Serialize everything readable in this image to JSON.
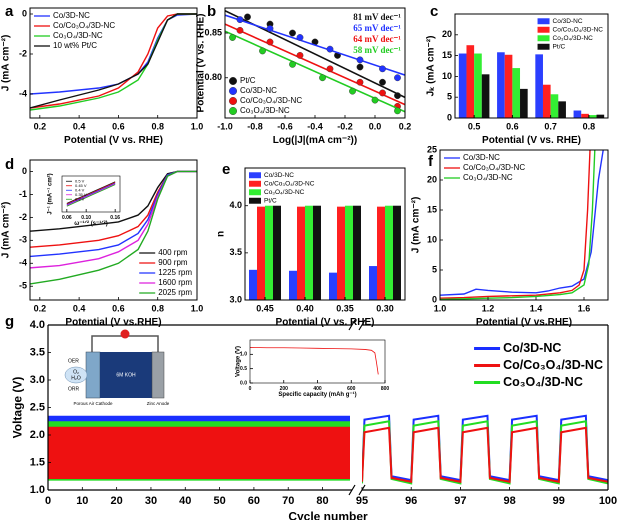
{
  "chart_data": [
    {
      "type": "line",
      "panel_label": "a",
      "x_label": "Potential (V vs. RHE)",
      "y_label": "J (mA cm⁻²)",
      "x": [
        0.15,
        0.3,
        0.5,
        0.6,
        0.7,
        0.75,
        0.8,
        0.85,
        0.9,
        1.0
      ],
      "xlim": [
        0.15,
        1.0
      ],
      "xticks": [
        0.2,
        0.4,
        0.6,
        0.8,
        {
          "value": 1,
          "label": "1.0"
        }
      ],
      "ylim": [
        -5.2,
        0.3
      ],
      "yticks": [
        -4,
        -2,
        0
      ],
      "legend": "upper left",
      "series": [
        {
          "name": "Co/3D-NC",
          "color": "#2233ff",
          "values": [
            -4.0,
            -3.9,
            -3.7,
            -3.5,
            -3.0,
            -2.4,
            -1.2,
            -0.3,
            -0.05,
            0
          ]
        },
        {
          "name": "Co/Co₃O₄/3D-NC",
          "color": "#ee1111",
          "values": [
            -4.7,
            -4.5,
            -4.1,
            -3.7,
            -2.9,
            -2.0,
            -0.7,
            -0.1,
            0,
            0
          ]
        },
        {
          "name": "Co₃O₄/3D-NC",
          "color": "#22cc22",
          "values": [
            -4.8,
            -4.6,
            -4.2,
            -3.9,
            -3.3,
            -2.5,
            -1.3,
            -0.3,
            0,
            0
          ]
        },
        {
          "name": "10 wt% Pt/C",
          "color": "#111111",
          "values": [
            -4.7,
            -4.3,
            -3.8,
            -3.5,
            -3.0,
            -2.5,
            -1.4,
            -0.3,
            0,
            0
          ]
        }
      ]
    },
    {
      "type": "scatter",
      "panel_label": "b",
      "x_label": "Log(|J|(mA cm⁻²))",
      "y_label": "Potential (V vs. RHE)",
      "xlim": [
        -1.0,
        0.2
      ],
      "xticks": [
        {
          "value": -1,
          "label": "-1.0"
        },
        -0.8,
        -0.6,
        -0.4,
        -0.2,
        {
          "value": 0,
          "label": "0.0"
        },
        0.2
      ],
      "ylim": [
        0.755,
        0.878
      ],
      "yticks": [
        {
          "value": 0.8,
          "label": "0.80"
        },
        0.85
      ],
      "legend": "lower left",
      "annotations": [
        {
          "text": "81 mV dec⁻¹",
          "color": "#111111"
        },
        {
          "text": "65 mV dec⁻¹",
          "color": "#2233ff"
        },
        {
          "text": "64 mV dec⁻¹",
          "color": "#ee1111"
        },
        {
          "text": "58 mV dec⁻¹",
          "color": "#22cc22"
        }
      ],
      "series": [
        {
          "name": "Pt/C",
          "color": "#111111",
          "x": [
            -0.85,
            -0.7,
            -0.55,
            -0.4,
            -0.25,
            -0.1,
            0.05,
            0.15
          ],
          "values": [
            0.868,
            0.86,
            0.85,
            0.84,
            0.825,
            0.812,
            0.795,
            0.78
          ],
          "fit_x": [
            -1.0,
            0.2
          ],
          "fit_values": [
            0.875,
            0.778
          ]
        },
        {
          "name": "Co/3D-NC",
          "color": "#2233ff",
          "x": [
            -0.9,
            -0.7,
            -0.5,
            -0.3,
            -0.1,
            0.05,
            0.15
          ],
          "values": [
            0.865,
            0.855,
            0.845,
            0.832,
            0.82,
            0.81,
            0.8
          ],
          "fit_x": [
            -1.0,
            0.2
          ],
          "fit_values": [
            0.87,
            0.803
          ]
        },
        {
          "name": "Co/Co₃O₄/3D-NC",
          "color": "#ee1111",
          "x": [
            -0.9,
            -0.7,
            -0.5,
            -0.3,
            -0.1,
            0.05,
            0.15
          ],
          "values": [
            0.853,
            0.84,
            0.825,
            0.81,
            0.795,
            0.783,
            0.768
          ],
          "fit_x": [
            -1.0,
            0.2
          ],
          "fit_values": [
            0.86,
            0.77
          ]
        },
        {
          "name": "Co₃O₄/3D-NC",
          "color": "#22cc22",
          "x": [
            -0.95,
            -0.75,
            -0.55,
            -0.35,
            -0.15,
            0.0,
            0.15
          ],
          "values": [
            0.845,
            0.83,
            0.815,
            0.8,
            0.785,
            0.775,
            0.763
          ],
          "fit_x": [
            -1.0,
            0.2
          ],
          "fit_values": [
            0.852,
            0.762
          ]
        }
      ]
    },
    {
      "type": "bar",
      "panel_label": "c",
      "x_label": "Potential (V vs. RHE)",
      "y_label": "Jₖ (mA cm⁻²)",
      "categories": [
        "0.5",
        "0.6",
        "0.7",
        "0.8"
      ],
      "ylim": [
        0,
        25
      ],
      "yticks": [
        0,
        5,
        10,
        15,
        20
      ],
      "legend": "upper right",
      "series": [
        {
          "name": "Co/3D-NC",
          "color": "#2b3fff",
          "values": [
            15.5,
            15.8,
            15.3,
            1.8
          ]
        },
        {
          "name": "Co/Co₃O₄/3D-NC",
          "color": "#ff2020",
          "values": [
            17.5,
            15.2,
            8,
            1
          ]
        },
        {
          "name": "Co₃O₄/3D-NC",
          "color": "#33ee33",
          "values": [
            15.5,
            12,
            5.7,
            0.7
          ]
        },
        {
          "name": "Pt/C",
          "color": "#111111",
          "values": [
            10.5,
            7,
            4,
            0.8
          ]
        }
      ]
    },
    {
      "type": "line",
      "panel_label": "d",
      "x_label": "Potential (V vs.RHE)",
      "y_label": "J (mA cm⁻²)",
      "x": [
        0.15,
        0.3,
        0.5,
        0.6,
        0.7,
        0.75,
        0.8,
        0.85,
        0.9,
        1.0
      ],
      "xlim": [
        0.15,
        1.0
      ],
      "xticks": [
        0.2,
        0.4,
        0.6,
        0.8,
        {
          "value": 1,
          "label": "1.0"
        }
      ],
      "ylim": [
        -5.6,
        0.5
      ],
      "yticks": [
        -5,
        -4,
        -3,
        -2,
        -1,
        0
      ],
      "legend": "lower right",
      "series": [
        {
          "name": "400 rpm",
          "color": "#111111",
          "values": [
            -2.6,
            -2.5,
            -2.3,
            -2.2,
            -1.9,
            -1.5,
            -0.7,
            -0.1,
            0,
            0
          ]
        },
        {
          "name": "900 rpm",
          "color": "#ee1111",
          "values": [
            -3.3,
            -3.2,
            -3.0,
            -2.8,
            -2.4,
            -1.9,
            -0.9,
            -0.15,
            0,
            0
          ]
        },
        {
          "name": "1225 rpm",
          "color": "#2233ff",
          "values": [
            -3.7,
            -3.6,
            -3.4,
            -3.2,
            -2.7,
            -2.1,
            -1.0,
            -0.15,
            0,
            0
          ]
        },
        {
          "name": "1600 rpm",
          "color": "#dd22dd",
          "values": [
            -4.2,
            -4.1,
            -3.8,
            -3.5,
            -3.0,
            -2.3,
            -1.1,
            -0.2,
            0,
            0
          ]
        },
        {
          "name": "2025 rpm",
          "color": "#22aa22",
          "values": [
            -4.9,
            -4.7,
            -4.3,
            -4.0,
            -3.4,
            -2.6,
            -1.2,
            -0.2,
            0,
            0
          ]
        }
      ]
    },
    {
      "type": "line",
      "x_label": "ω⁻¹ᐟ² (s⁻¹ᐟ²)",
      "y_label": "J⁻¹ (mA⁻¹ cm²)",
      "x": [
        0.06,
        0.08,
        0.1,
        0.12,
        0.14,
        0.16
      ],
      "xlim": [
        0.05,
        0.17
      ],
      "xticks": [
        0.06,
        {
          "value": 0.1,
          "label": "0.10"
        },
        0.16
      ],
      "ylim": [
        0.2,
        0.45
      ],
      "legend": "upper left",
      "series": [
        {
          "name": "0.5 V",
          "color": "#111111",
          "values": [
            0.26,
            0.29,
            0.32,
            0.35,
            0.38,
            0.41
          ]
        },
        {
          "name": "0.45 V",
          "color": "#ee1111",
          "values": [
            0.255,
            0.285,
            0.315,
            0.345,
            0.375,
            0.405
          ]
        },
        {
          "name": "0.4 V",
          "color": "#2233ff",
          "values": [
            0.25,
            0.28,
            0.31,
            0.34,
            0.37,
            0.4
          ]
        },
        {
          "name": "0.35 V",
          "color": "#dd22dd",
          "values": [
            0.245,
            0.275,
            0.305,
            0.335,
            0.365,
            0.395
          ]
        },
        {
          "name": "0.3 V",
          "color": "#22aa22",
          "values": [
            0.24,
            0.27,
            0.3,
            0.33,
            0.36,
            0.39
          ]
        }
      ]
    },
    {
      "type": "bar",
      "panel_label": "e",
      "x_label": "Potential (V vs. RHE)",
      "y_label": "n",
      "categories": [
        "0.45",
        "0.40",
        "0.35",
        "0.30"
      ],
      "ylim": [
        3.0,
        4.4
      ],
      "yticks": [
        {
          "value": 3,
          "label": "3.0"
        },
        3.5,
        {
          "value": 4,
          "label": "4.0"
        }
      ],
      "legend": "upper left",
      "series": [
        {
          "name": "Co/3D-NC",
          "color": "#2b3fff",
          "values": [
            3.32,
            3.31,
            3.29,
            3.36
          ]
        },
        {
          "name": "Co/Co₃O₄/3D-NC",
          "color": "#ff2020",
          "values": [
            3.99,
            3.99,
            3.99,
            3.99
          ]
        },
        {
          "name": "Co₃O₄/3D-NC",
          "color": "#33ee33",
          "values": [
            4.0,
            4.0,
            4.0,
            4.0
          ]
        },
        {
          "name": "Pt/C",
          "color": "#111111",
          "values": [
            4.0,
            4.0,
            4.0,
            4.0
          ]
        }
      ]
    },
    {
      "type": "line",
      "panel_label": "f",
      "x_label": "Potential (V vs.RHE)",
      "y_label": "J (mA cm⁻²)",
      "xlim": [
        1.0,
        1.7
      ],
      "xticks": [
        {
          "value": 1,
          "label": "1.0"
        },
        1.2,
        1.4,
        1.6
      ],
      "ylim": [
        0,
        25
      ],
      "yticks": [
        0,
        5,
        10,
        15,
        20,
        25
      ],
      "legend": "upper left",
      "series": [
        {
          "name": "Co/3D-NC",
          "color": "#2233ff",
          "x": [
            1.0,
            1.1,
            1.15,
            1.2,
            1.3,
            1.4,
            1.45,
            1.5,
            1.55,
            1.6,
            1.63,
            1.66,
            1.68
          ],
          "values": [
            0.8,
            1.0,
            1.8,
            1.6,
            1.3,
            1.2,
            1.5,
            2.0,
            2.3,
            3.5,
            8,
            20,
            25
          ]
        },
        {
          "name": "Co/Co₃O₄/3D-NC",
          "color": "#ee1111",
          "x": [
            1.0,
            1.1,
            1.2,
            1.3,
            1.4,
            1.5,
            1.55,
            1.58,
            1.6,
            1.615,
            1.625
          ],
          "values": [
            0.3,
            0.4,
            0.6,
            0.7,
            0.8,
            1.2,
            1.6,
            2.5,
            5,
            15,
            25
          ]
        },
        {
          "name": "Co₃O₄/3D-NC",
          "color": "#22cc22",
          "x": [
            1.0,
            1.1,
            1.2,
            1.3,
            1.4,
            1.5,
            1.55,
            1.6,
            1.62,
            1.635,
            1.645
          ],
          "values": [
            0.1,
            0.2,
            0.3,
            0.4,
            0.6,
            0.9,
            1.2,
            2.5,
            6,
            15,
            25
          ]
        }
      ]
    },
    {
      "type": "cycling",
      "panel_label": "g",
      "x_label": "Cycle number",
      "y_label": "Voltage (V)",
      "xlim_left": [
        0,
        88
      ],
      "xticks_left": [
        0,
        10,
        20,
        30,
        40,
        50,
        60,
        70,
        80
      ],
      "xlim": [
        95,
        100
      ],
      "xticks": [
        95,
        96,
        97,
        98,
        99,
        100
      ],
      "ylim": [
        1.0,
        4.0
      ],
      "yticks": [
        {
          "value": 1,
          "label": "1.0"
        },
        1.5,
        {
          "value": 2,
          "label": "2.0"
        },
        2.5,
        {
          "value": 3,
          "label": "3.0"
        },
        3.5,
        {
          "value": 4,
          "label": "4.0"
        }
      ],
      "legend": "upper right",
      "schematic": [
        "OER",
        "ORR",
        "O₂",
        "H₂O",
        "6M KOH",
        "Porous Air Cathode",
        "Zinc Anode"
      ],
      "x": [
        95,
        95.05,
        95.55,
        95.6,
        96,
        96.05,
        96.55,
        96.6,
        97,
        97.05,
        97.55,
        97.6,
        98,
        98.05,
        98.55,
        98.6,
        99,
        99.05,
        99.55,
        99.6,
        100
      ],
      "series": [
        {
          "name": "Co/3D-NC",
          "color": "#1a2fff",
          "band": [
            1.18,
            2.35
          ],
          "values": [
            1.18,
            2.28,
            2.35,
            1.25,
            1.18,
            2.28,
            2.35,
            1.25,
            1.18,
            2.28,
            2.35,
            1.25,
            1.18,
            2.28,
            2.35,
            1.25,
            1.18,
            2.28,
            2.35,
            1.25,
            1.18
          ]
        },
        {
          "name": "Co/Co₃O₄/3D-NC",
          "color": "#ee1111",
          "band": [
            1.2,
            2.15
          ],
          "values": [
            1.15,
            2.05,
            2.13,
            1.22,
            1.15,
            2.05,
            2.13,
            1.22,
            1.15,
            2.05,
            2.13,
            1.22,
            1.15,
            2.05,
            2.13,
            1.22,
            1.15,
            2.05,
            2.13,
            1.22,
            1.15
          ]
        },
        {
          "name": "Co₃O₄/3D-NC",
          "color": "#22dd22",
          "band": [
            1.17,
            2.25
          ],
          "values": [
            1.12,
            2.17,
            2.25,
            1.2,
            1.12,
            2.17,
            2.25,
            1.2,
            1.12,
            2.17,
            2.25,
            1.2,
            1.12,
            2.17,
            2.25,
            1.2,
            1.12,
            2.17,
            2.25,
            1.2,
            1.12
          ]
        }
      ]
    },
    {
      "type": "line",
      "x_label": "Specific capacity (mAh g⁻¹)",
      "y_label": "Voltage (V)",
      "x": [
        0,
        100,
        200,
        300,
        400,
        500,
        600,
        680,
        720,
        740,
        750,
        760
      ],
      "xlim": [
        0,
        800
      ],
      "xticks": [
        0,
        200,
        400,
        600,
        800
      ],
      "ylim": [
        0,
        1.5
      ],
      "yticks": [
        {
          "value": 0,
          "label": "0.0"
        },
        0.5,
        {
          "value": 1,
          "label": "1.0"
        }
      ],
      "color": "#ee1111",
      "values": [
        1.24,
        1.23,
        1.23,
        1.22,
        1.21,
        1.2,
        1.19,
        1.17,
        1.14,
        1.05,
        0.7,
        0.3
      ]
    }
  ]
}
